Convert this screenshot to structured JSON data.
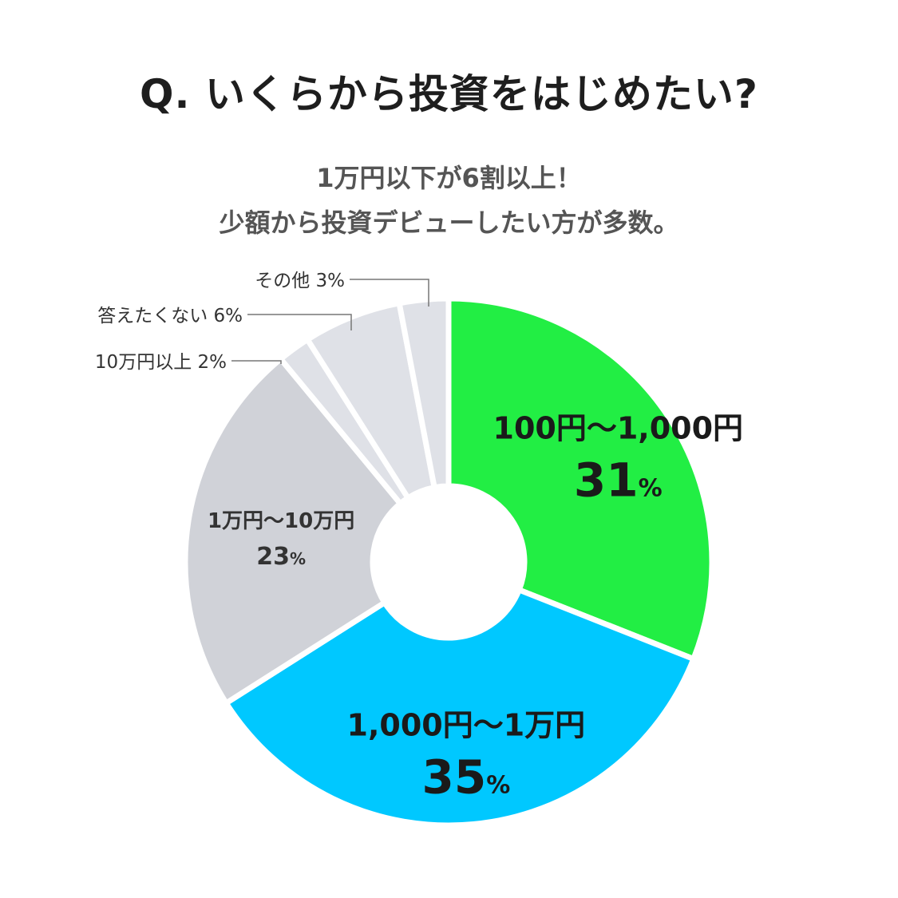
{
  "title": "Q. いくらから投資をはじめたい?",
  "subtitle_line1": "1万円以下が6割以上！",
  "subtitle_line2": "少額から投資デビューしたい方が多数。",
  "chart_data": {
    "type": "pie",
    "title": "Q. いくらから投資をはじめたい?",
    "donut": true,
    "unit": "%",
    "slices": [
      {
        "label": "100円〜1,000円",
        "value": 31,
        "color": "#22ee44",
        "label_style": "inside-large"
      },
      {
        "label": "1,000円〜1万円",
        "value": 35,
        "color": "#00c8ff",
        "label_style": "inside-large"
      },
      {
        "label": "1万円〜10万円",
        "value": 23,
        "color": "#d0d2d8",
        "label_style": "inside-small"
      },
      {
        "label": "10万円以上",
        "value": 2,
        "color": "#dfe1e7",
        "label_style": "outside"
      },
      {
        "label": "答えたくない",
        "value": 6,
        "color": "#dfe1e7",
        "label_style": "outside"
      },
      {
        "label": "その他",
        "value": 3,
        "color": "#dfe1e7",
        "label_style": "outside"
      }
    ]
  }
}
